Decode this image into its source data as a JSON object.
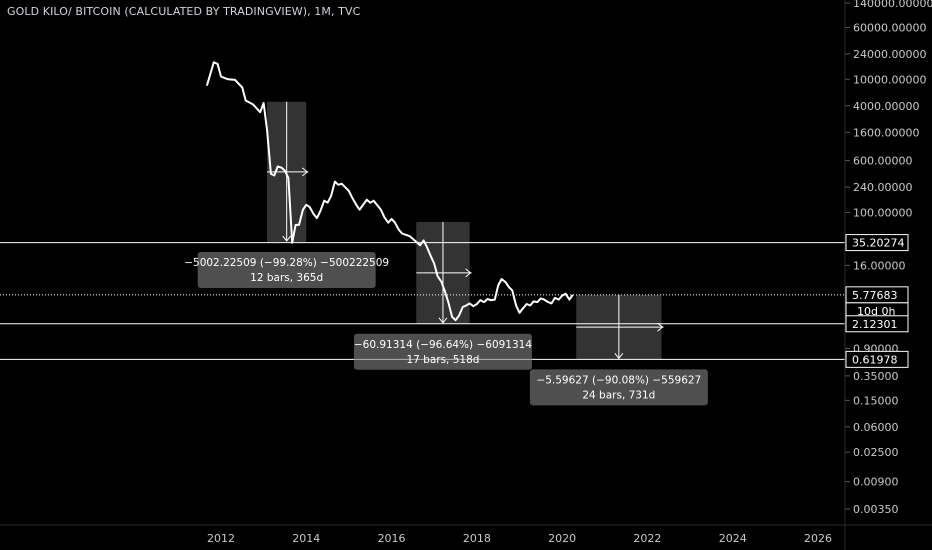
{
  "header": {
    "title": "GOLD KILO/ BITCOIN (CALCULATED BY TRADINGVIEW), 1M, TVC"
  },
  "colors": {
    "background": "#000000",
    "line": "#ffffff",
    "axis_text": "#c8c8c8",
    "measure_box": "#808080",
    "shade": "#3c3c3c"
  },
  "chart_data": {
    "type": "line",
    "title": "GOLD KILO/ BITCOIN (CALCULATED BY TRADINGVIEW), 1M, TVC",
    "xlabel": "",
    "ylabel": "",
    "y_scale": "log",
    "xlim": [
      2011.0,
      2026.6
    ],
    "ylim": [
      0.0019,
      220000
    ],
    "y_ticks": [
      {
        "label": "140000.00000",
        "value": 140000
      },
      {
        "label": "60000.00000",
        "value": 60000
      },
      {
        "label": "24000.00000",
        "value": 24000
      },
      {
        "label": "10000.00000",
        "value": 10000
      },
      {
        "label": "4000.00000",
        "value": 4000
      },
      {
        "label": "1600.00000",
        "value": 1600
      },
      {
        "label": "600.00000",
        "value": 600
      },
      {
        "label": "240.00000",
        "value": 240
      },
      {
        "label": "100.00000",
        "value": 100
      },
      {
        "label": "16.00000",
        "value": 16
      },
      {
        "label": "0.90000",
        "value": 0.9
      },
      {
        "label": "0.35000",
        "value": 0.35
      },
      {
        "label": "0.15000",
        "value": 0.15
      },
      {
        "label": "0.06000",
        "value": 0.06
      },
      {
        "label": "0.02500",
        "value": 0.025
      },
      {
        "label": "0.00900",
        "value": 0.009
      },
      {
        "label": "0.00350",
        "value": 0.0035
      }
    ],
    "x_ticks": [
      {
        "label": "2012",
        "value": 2012
      },
      {
        "label": "2014",
        "value": 2014
      },
      {
        "label": "2016",
        "value": 2016
      },
      {
        "label": "2018",
        "value": 2018
      },
      {
        "label": "2020",
        "value": 2020
      },
      {
        "label": "2022",
        "value": 2022
      },
      {
        "label": "2024",
        "value": 2024
      },
      {
        "label": "2026",
        "value": 2026
      }
    ],
    "price_tags": [
      {
        "label": "35.20274",
        "value": 35.20274
      },
      {
        "label": "5.77683",
        "value": 5.77683
      },
      {
        "label": "2.12301",
        "value": 2.12301
      },
      {
        "label": "0.61978",
        "value": 0.61978
      }
    ],
    "countdown_label": "10d 0h",
    "series": [
      {
        "x": [
          2011.67,
          2011.83,
          2011.92,
          2012.0,
          2012.08,
          2012.17,
          2012.33,
          2012.5,
          2012.58,
          2012.75,
          2012.92,
          2013.0,
          2013.08,
          2013.17,
          2013.25,
          2013.33,
          2013.42,
          2013.5,
          2013.58,
          2013.67,
          2013.75,
          2013.83,
          2013.92,
          2014.0,
          2014.08,
          2014.17,
          2014.25,
          2014.33,
          2014.42,
          2014.5,
          2014.58,
          2014.67,
          2014.75,
          2014.83,
          2015.0,
          2015.08,
          2015.17,
          2015.25,
          2015.42,
          2015.5,
          2015.58,
          2015.75,
          2015.83,
          2015.92,
          2016.0,
          2016.08,
          2016.17,
          2016.25,
          2016.42,
          2016.5,
          2016.58,
          2016.67,
          2016.75,
          2016.83,
          2016.92,
          2017.0,
          2017.08,
          2017.17,
          2017.25,
          2017.33,
          2017.42,
          2017.5,
          2017.58,
          2017.67,
          2017.75,
          2017.83,
          2017.92,
          2018.0,
          2018.08,
          2018.17,
          2018.25,
          2018.33,
          2018.42,
          2018.5,
          2018.58,
          2018.67,
          2018.75,
          2018.83,
          2018.92,
          2019.0,
          2019.08,
          2019.17,
          2019.25,
          2019.33,
          2019.42,
          2019.5,
          2019.58,
          2019.67,
          2019.75,
          2019.83,
          2019.92,
          2020.0,
          2020.08,
          2020.17,
          2020.25
        ],
        "values": [
          8000,
          18000,
          17000,
          11000,
          10500,
          10000,
          9800,
          7500,
          4800,
          4200,
          3200,
          4400,
          1700,
          380,
          360,
          490,
          470,
          420,
          330,
          35,
          65,
          65,
          110,
          130,
          120,
          95,
          82,
          105,
          150,
          140,
          175,
          290,
          260,
          270,
          210,
          165,
          130,
          110,
          155,
          140,
          150,
          110,
          85,
          70,
          80,
          70,
          55,
          48,
          44,
          40,
          36,
          32,
          38,
          30,
          22,
          17,
          11,
          9,
          6.5,
          4.5,
          2.7,
          2.4,
          2.8,
          3.8,
          4.0,
          4.3,
          3.9,
          4.2,
          4.8,
          4.5,
          5.0,
          4.8,
          4.9,
          8.0,
          10.0,
          9.0,
          7.6,
          6.7,
          4.0,
          3.1,
          3.6,
          4.2,
          4.0,
          4.6,
          4.5,
          5.1,
          4.9,
          4.5,
          4.3,
          5.2,
          4.9,
          5.6,
          6.0,
          4.9,
          5.78
        ]
      }
    ],
    "measurements": [
      {
        "x0": 2013.08,
        "x1": 2014.0,
        "y_top": 4600,
        "y_bottom": 36,
        "text_line1": "−5002.22509 (−99.28%) −500222509",
        "text_line2": "12 bars, 365d"
      },
      {
        "x0": 2016.58,
        "x1": 2017.83,
        "y_top": 72,
        "y_bottom": 2.12,
        "text_line1": "−60.91314 (−96.64%) −6091314",
        "text_line2": "17 bars, 518d"
      },
      {
        "x0": 2020.33,
        "x1": 2022.33,
        "y_top": 5.78,
        "y_bottom": 0.62,
        "text_line1": "−5.59627 (−90.08%) −559627",
        "text_line2": "24 bars, 731d"
      }
    ]
  }
}
